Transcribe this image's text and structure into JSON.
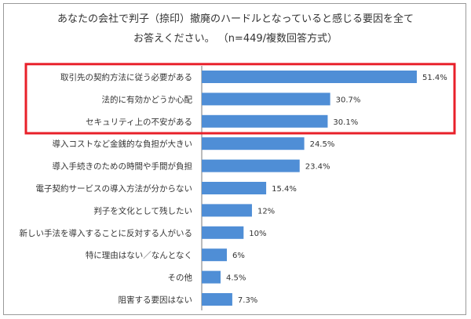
{
  "chart_data": {
    "type": "bar",
    "orientation": "horizontal",
    "title_line1": "あなたの会社で判子（捺印）撤廃のハードルとなっていると感じる要因を全て",
    "title_line2": "お答えください。 （n=449/複数回答方式）",
    "categories": [
      "取引先の契約方法に従う必要がある",
      "法的に有効かどうか心配",
      "セキュリティ上の不安がある",
      "導入コストなど金銭的な負担が大きい",
      "導入手続きのための時間や手間が負担",
      "電子契約サービスの導入方法が分からない",
      "判子を文化として残したい",
      "新しい手法を導入することに反対する人がいる",
      "特に理由はない／なんとなく",
      "その他",
      "阻害する要因はない"
    ],
    "values": [
      51.4,
      30.7,
      30.1,
      24.5,
      23.4,
      15.4,
      12,
      10,
      6,
      4.5,
      7.3
    ],
    "value_labels": [
      "51.4%",
      "30.7%",
      "30.1%",
      "24.5%",
      "23.4%",
      "15.4%",
      "12%",
      "10%",
      "6%",
      "4.5%",
      "7.3%"
    ],
    "xlim": [
      0,
      60
    ],
    "highlight_count": 3,
    "bar_color": "#4f8ed6",
    "highlight_color": "#e8202a",
    "grid": false,
    "legend": "none"
  }
}
